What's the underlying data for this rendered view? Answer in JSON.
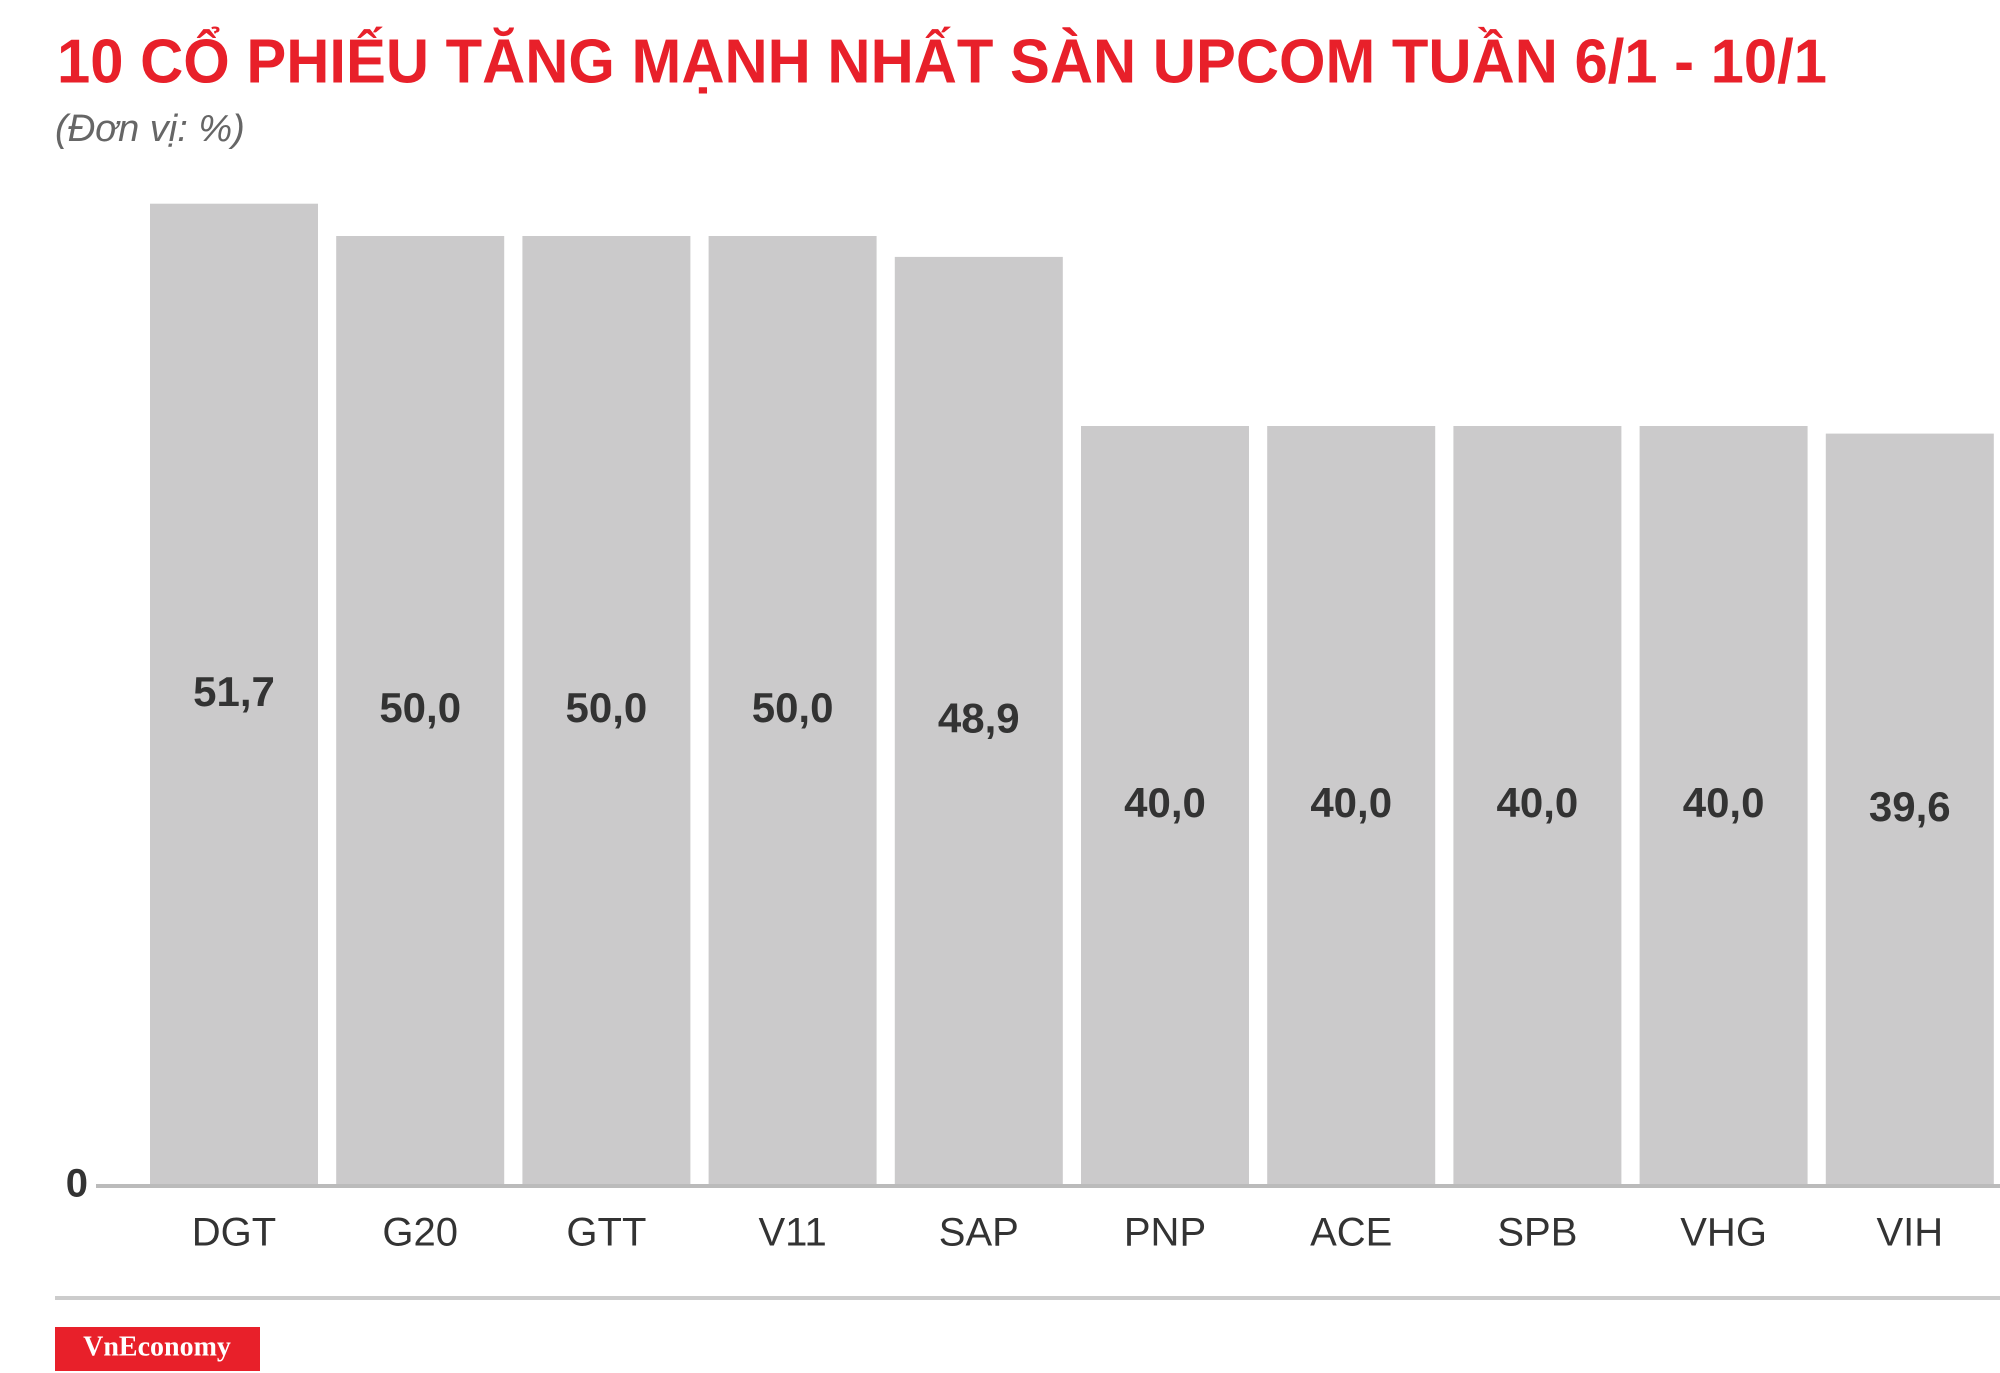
{
  "chart_data": {
    "type": "bar",
    "title": "10 CỔ PHIẾU TĂNG MẠNH NHẤT SÀN UPCOM TUẦN 6/1 - 10/1",
    "subtitle": "(Đơn vị: %)",
    "categories": [
      "DGT",
      "G20",
      "GTT",
      "V11",
      "SAP",
      "PNP",
      "ACE",
      "SPB",
      "VHG",
      "VIH"
    ],
    "values": [
      51.7,
      50.0,
      50.0,
      50.0,
      48.9,
      40.0,
      40.0,
      40.0,
      40.0,
      39.6
    ],
    "value_labels": [
      "51,7",
      "50,0",
      "50,0",
      "50,0",
      "48,9",
      "40,0",
      "40,0",
      "40,0",
      "40,0",
      "39,6"
    ],
    "color": "#cbcacb",
    "ylim": [
      0,
      52
    ],
    "yticks": [
      0
    ]
  },
  "brand": "VnEconomy"
}
